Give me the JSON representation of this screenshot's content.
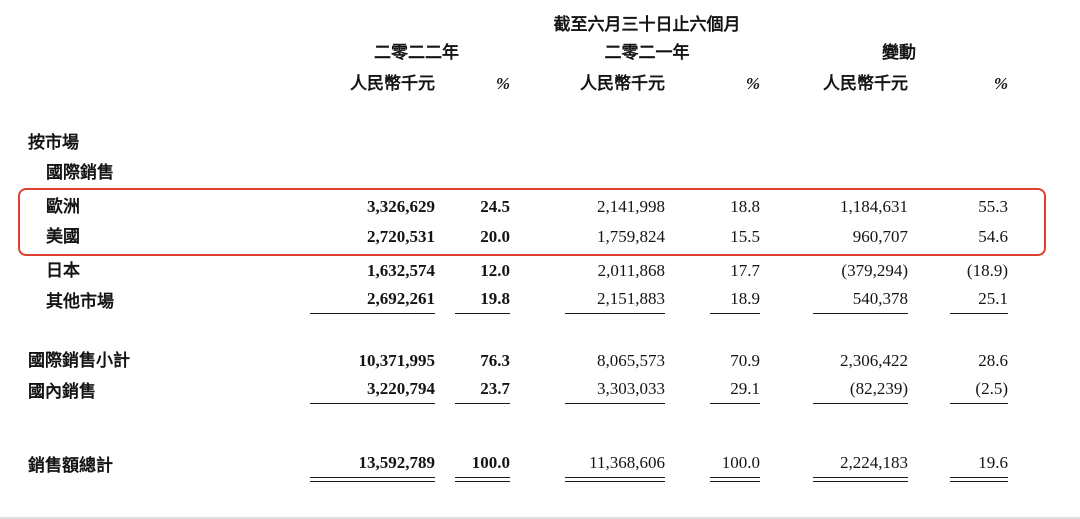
{
  "report": {
    "period_header": "截至六月三十日止六個月",
    "columns": {
      "year_2022": "二零二二年",
      "year_2021": "二零二一年",
      "change": "變動",
      "unit": "人民幣千元",
      "percent": "%"
    },
    "section_title": "按市場",
    "group_title": "國際銷售",
    "rows": [
      {
        "label": "歐洲",
        "v22": "3,326,629",
        "p22": "24.5",
        "v21": "2,141,998",
        "p21": "18.8",
        "vc": "1,184,631",
        "pc": "55.3"
      },
      {
        "label": "美國",
        "v22": "2,720,531",
        "p22": "20.0",
        "v21": "1,759,824",
        "p21": "15.5",
        "vc": "960,707",
        "pc": "54.6"
      },
      {
        "label": "日本",
        "v22": "1,632,574",
        "p22": "12.0",
        "v21": "2,011,868",
        "p21": "17.7",
        "vc": "(379,294)",
        "pc": "(18.9)"
      },
      {
        "label": "其他市場",
        "v22": "2,692,261",
        "p22": "19.8",
        "v21": "2,151,883",
        "p21": "18.9",
        "vc": "540,378",
        "pc": "25.1"
      },
      {
        "label": "國際銷售小計",
        "v22": "10,371,995",
        "p22": "76.3",
        "v21": "8,065,573",
        "p21": "70.9",
        "vc": "2,306,422",
        "pc": "28.6"
      },
      {
        "label": "國內銷售",
        "v22": "3,220,794",
        "p22": "23.7",
        "v21": "3,303,033",
        "p21": "29.1",
        "vc": "(82,239)",
        "pc": "(2.5)"
      },
      {
        "label": "銷售額總計",
        "v22": "13,592,789",
        "p22": "100.0",
        "v21": "11,368,606",
        "p21": "100.0",
        "vc": "2,224,183",
        "pc": "19.6"
      }
    ],
    "highlight": {
      "rows": [
        "歐洲",
        "美國"
      ],
      "color": "#e0402f"
    }
  }
}
